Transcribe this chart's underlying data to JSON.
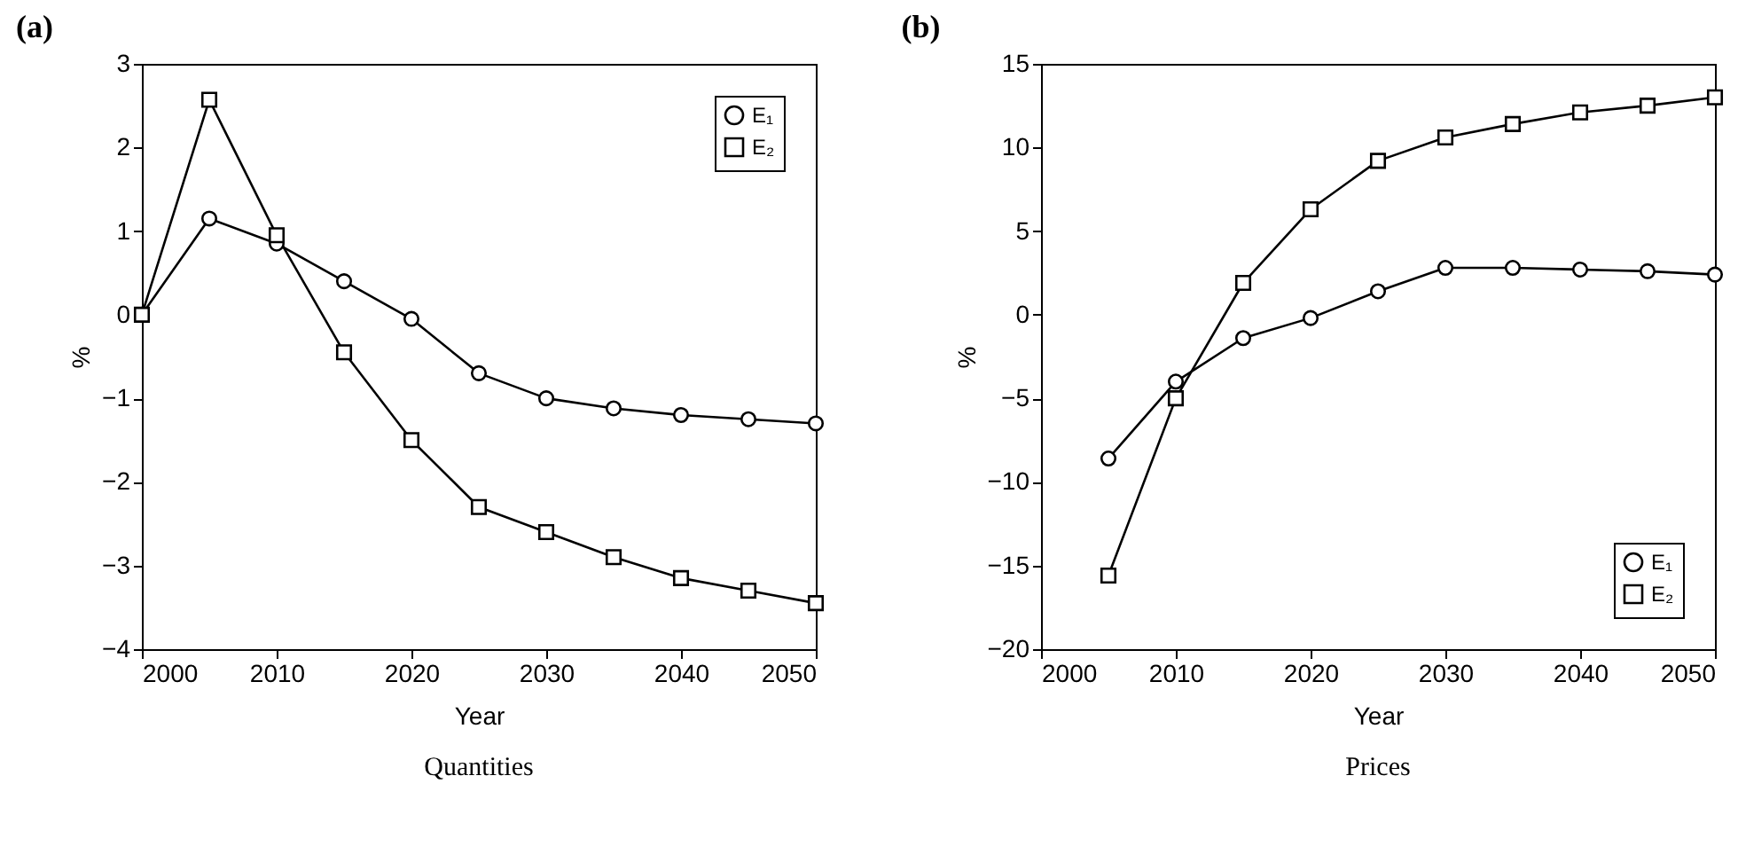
{
  "chart_data": [
    {
      "type": "line",
      "title": "(a)",
      "xlabel": "Year",
      "ylabel": "%",
      "annotations": [
        "Quantities"
      ],
      "xlim": [
        2000,
        2050
      ],
      "xticks": [
        2000,
        2010,
        2020,
        2030,
        2040,
        2050
      ],
      "ylim": [
        -4,
        3
      ],
      "yticks": [
        -4,
        -3,
        -2,
        -1,
        0,
        1,
        2,
        3
      ],
      "grid": false,
      "legend": "top right",
      "x": [
        2000,
        2005,
        2010,
        2015,
        2020,
        2025,
        2030,
        2035,
        2040,
        2045,
        2050
      ],
      "series": [
        {
          "name": "E₁",
          "color": "#000000",
          "marker": "circle",
          "values": [
            0,
            1.15,
            0.85,
            0.4,
            -0.05,
            -0.7,
            -1.0,
            -1.12,
            -1.2,
            -1.25,
            -1.3
          ]
        },
        {
          "name": "E₂",
          "color": "#000000",
          "marker": "square",
          "values": [
            0,
            2.57,
            0.95,
            -0.45,
            -1.5,
            -2.3,
            -2.6,
            -2.9,
            -3.15,
            -3.3,
            -3.45
          ]
        }
      ]
    },
    {
      "type": "line",
      "title": "(b)",
      "xlabel": "Year",
      "ylabel": "%",
      "annotations": [
        "Prices"
      ],
      "xlim": [
        2000,
        2050
      ],
      "xticks": [
        2000,
        2010,
        2020,
        2030,
        2040,
        2050
      ],
      "ylim": [
        -20,
        15
      ],
      "yticks": [
        -20,
        -15,
        -10,
        -5,
        0,
        5,
        10,
        15
      ],
      "grid": false,
      "legend": "bottom right",
      "x": [
        2005,
        2010,
        2015,
        2020,
        2025,
        2030,
        2035,
        2040,
        2045,
        2050
      ],
      "series": [
        {
          "name": "E₁",
          "color": "#000000",
          "marker": "circle",
          "values": [
            -8.6,
            -4.0,
            -1.4,
            -0.2,
            1.4,
            2.8,
            2.8,
            2.7,
            2.6,
            2.4
          ]
        },
        {
          "name": "E₂",
          "color": "#000000",
          "marker": "square",
          "values": [
            -15.6,
            -5.0,
            1.9,
            6.3,
            9.2,
            10.6,
            11.4,
            12.1,
            12.5,
            13.0
          ]
        }
      ]
    }
  ]
}
